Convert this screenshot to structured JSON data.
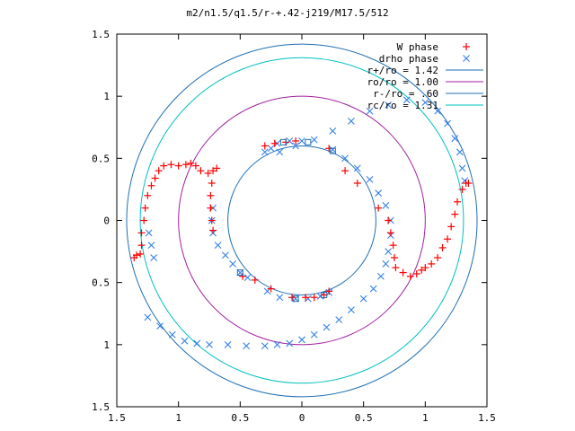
{
  "chart_data": {
    "type": "scatter",
    "title": "m2/n1.5/q1.5/r-+.42-j219/M17.5/512",
    "xlabel": "",
    "ylabel": "",
    "xlim": [
      -1.5,
      1.5
    ],
    "ylim": [
      -1.5,
      1.5
    ],
    "x_ticks": [
      "1.5",
      "1",
      "0.5",
      "0",
      "0.5",
      "1",
      "1.5"
    ],
    "y_ticks": [
      "1.5",
      "1",
      "0.5",
      "0",
      "0.5",
      "1",
      "1.5"
    ],
    "grid": false,
    "legend_position": "top-right",
    "series": [
      {
        "name": "W phase",
        "marker": "plus",
        "color": "#ff0000",
        "points": [
          [
            -1.36,
            -0.3
          ],
          [
            -1.34,
            -0.28
          ],
          [
            -1.31,
            -0.27
          ],
          [
            -1.3,
            -0.2
          ],
          [
            -1.3,
            -0.1
          ],
          [
            -1.28,
            0.0
          ],
          [
            -1.27,
            0.1
          ],
          [
            -1.25,
            0.2
          ],
          [
            -1.22,
            0.28
          ],
          [
            -1.19,
            0.34
          ],
          [
            -1.16,
            0.4
          ],
          [
            -1.12,
            0.44
          ],
          [
            -1.06,
            0.45
          ],
          [
            -1.0,
            0.44
          ],
          [
            -0.94,
            0.45
          ],
          [
            -0.9,
            0.46
          ],
          [
            -0.86,
            0.44
          ],
          [
            -0.82,
            0.4
          ],
          [
            -0.76,
            0.38
          ],
          [
            -0.72,
            0.4
          ],
          [
            -0.69,
            0.42
          ],
          [
            -0.73,
            0.3
          ],
          [
            -0.74,
            0.2
          ],
          [
            -0.74,
            0.1
          ],
          [
            -0.73,
            0.0
          ],
          [
            -0.72,
            -0.08
          ],
          [
            -0.3,
            0.6
          ],
          [
            -0.22,
            0.62
          ],
          [
            -0.13,
            0.63
          ],
          [
            -0.05,
            0.64
          ],
          [
            0.22,
            0.58
          ],
          [
            0.35,
            0.4
          ],
          [
            0.45,
            0.3
          ],
          [
            0.62,
            0.1
          ],
          [
            0.7,
            0.0
          ],
          [
            0.72,
            -0.1
          ],
          [
            0.74,
            -0.2
          ],
          [
            0.75,
            -0.3
          ],
          [
            0.76,
            -0.38
          ],
          [
            0.82,
            -0.42
          ],
          [
            0.88,
            -0.45
          ],
          [
            0.93,
            -0.43
          ],
          [
            0.97,
            -0.4
          ],
          [
            1.0,
            -0.38
          ],
          [
            1.05,
            -0.35
          ],
          [
            1.1,
            -0.3
          ],
          [
            1.14,
            -0.22
          ],
          [
            1.18,
            -0.15
          ],
          [
            1.21,
            -0.05
          ],
          [
            1.24,
            0.05
          ],
          [
            1.26,
            0.15
          ],
          [
            1.3,
            0.25
          ],
          [
            1.33,
            0.3
          ],
          [
            1.35,
            0.3
          ],
          [
            -0.48,
            -0.45
          ],
          [
            -0.38,
            -0.48
          ],
          [
            -0.25,
            -0.55
          ],
          [
            -0.08,
            -0.62
          ],
          [
            0.03,
            -0.62
          ],
          [
            0.1,
            -0.62
          ],
          [
            0.18,
            -0.6
          ],
          [
            0.22,
            -0.57
          ]
        ]
      },
      {
        "name": "drho phase",
        "marker": "cross",
        "color": "#3380e6",
        "points": [
          [
            -0.25,
            0.58
          ],
          [
            -0.3,
            0.55
          ],
          [
            -0.2,
            0.62
          ],
          [
            -0.1,
            0.64
          ],
          [
            0.0,
            0.64
          ],
          [
            0.25,
            0.57
          ],
          [
            0.35,
            0.5
          ],
          [
            0.45,
            0.42
          ],
          [
            0.55,
            0.33
          ],
          [
            0.62,
            0.22
          ],
          [
            0.68,
            0.12
          ],
          [
            0.72,
            0.0
          ],
          [
            0.72,
            -0.12
          ],
          [
            0.7,
            -0.25
          ],
          [
            0.68,
            -0.35
          ],
          [
            0.64,
            -0.45
          ],
          [
            0.58,
            -0.55
          ],
          [
            0.5,
            -0.63
          ],
          [
            0.4,
            -0.72
          ],
          [
            0.3,
            -0.8
          ],
          [
            0.2,
            -0.86
          ],
          [
            0.1,
            -0.92
          ],
          [
            0.0,
            -0.96
          ],
          [
            -0.1,
            -0.99
          ],
          [
            -0.2,
            -1.0
          ],
          [
            -0.3,
            -1.01
          ],
          [
            -0.45,
            -1.01
          ],
          [
            -0.6,
            -1.0
          ],
          [
            -0.75,
            -1.0
          ],
          [
            -0.85,
            -0.99
          ],
          [
            -0.95,
            -0.97
          ],
          [
            -1.05,
            -0.92
          ],
          [
            -1.15,
            -0.85
          ],
          [
            -1.25,
            -0.78
          ],
          [
            -0.72,
            0.1
          ],
          [
            -0.73,
            0.0
          ],
          [
            -0.72,
            -0.1
          ],
          [
            -0.68,
            -0.2
          ],
          [
            -0.62,
            -0.28
          ],
          [
            -0.56,
            -0.35
          ],
          [
            -0.5,
            -0.42
          ],
          [
            -0.44,
            -0.46
          ],
          [
            -0.28,
            -0.57
          ],
          [
            -0.18,
            -0.62
          ],
          [
            -0.05,
            -0.63
          ],
          [
            0.05,
            -0.63
          ],
          [
            0.15,
            -0.61
          ],
          [
            0.22,
            -0.58
          ],
          [
            -0.18,
            0.55
          ],
          [
            -0.05,
            0.6
          ],
          [
            0.1,
            0.65
          ],
          [
            0.25,
            0.72
          ],
          [
            0.4,
            0.8
          ],
          [
            0.55,
            0.88
          ],
          [
            0.7,
            0.93
          ],
          [
            0.85,
            0.97
          ],
          [
            1.0,
            0.95
          ],
          [
            1.1,
            0.88
          ],
          [
            1.18,
            0.78
          ],
          [
            1.24,
            0.66
          ],
          [
            1.28,
            0.55
          ],
          [
            1.3,
            0.42
          ],
          [
            1.32,
            0.32
          ],
          [
            -1.2,
            -0.3
          ],
          [
            -1.22,
            -0.2
          ],
          [
            -1.24,
            -0.1
          ]
        ]
      }
    ],
    "circles": [
      {
        "label": "r+/ro = 1.42",
        "r": 1.42,
        "color": "#1f6fb4"
      },
      {
        "label": "ro/ro = 1.00",
        "r": 1.0,
        "color": "#a020a0"
      },
      {
        "label": "r-/ro = .60",
        "r": 0.6,
        "color": "#1f6fb4"
      },
      {
        "label": "rc/ro = 1.31",
        "r": 1.31,
        "color": "#00c0c0"
      }
    ],
    "square_markers": [
      [
        -0.15,
        0.63
      ],
      [
        0.05,
        0.63
      ],
      [
        0.25,
        0.56
      ],
      [
        0.18,
        -0.6
      ],
      [
        -0.05,
        -0.63
      ],
      [
        -0.5,
        -0.42
      ]
    ]
  }
}
